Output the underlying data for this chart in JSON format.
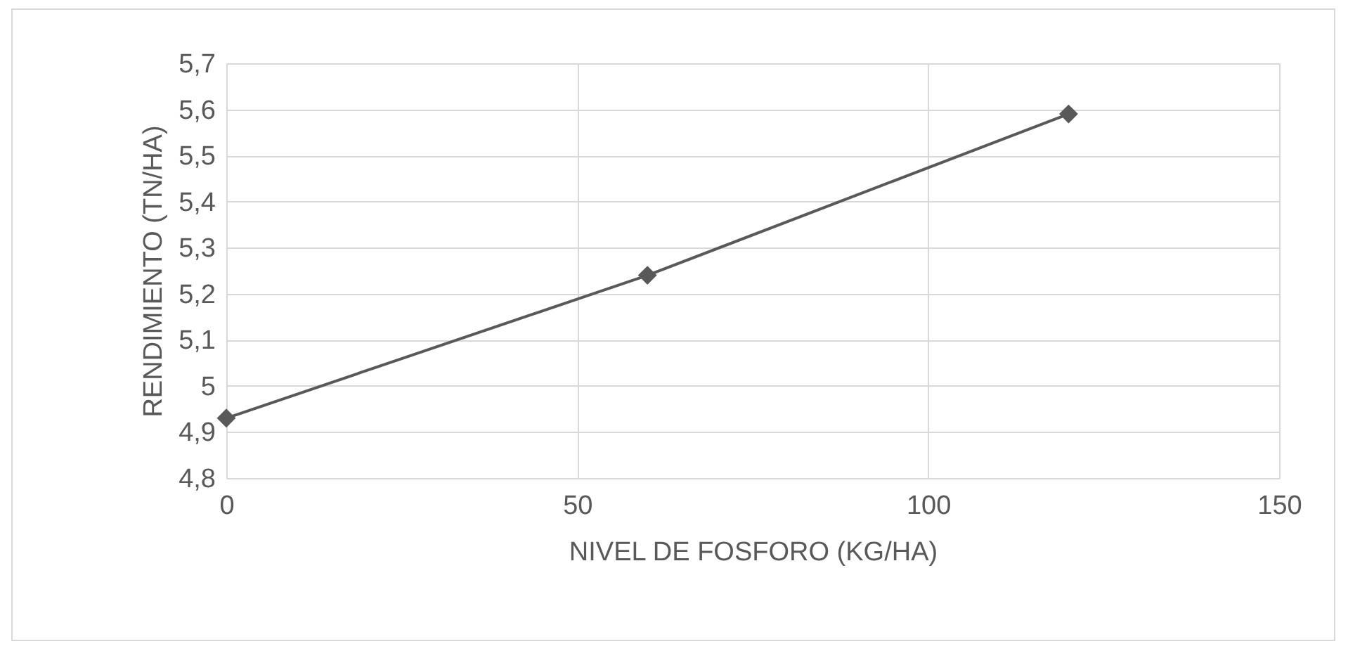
{
  "chart_data": {
    "type": "line",
    "xlabel": "NIVEL DE FOSFORO (KG/HA)",
    "ylabel": "RENDIMIENTO (TN/HA)",
    "x": [
      0,
      60,
      120
    ],
    "series": [
      {
        "color": "#595959",
        "values": [
          4.93,
          5.24,
          5.59
        ]
      }
    ],
    "xlim": [
      0,
      150
    ],
    "xticks": [
      0,
      50,
      100,
      150
    ],
    "ylim": [
      4.8,
      5.7
    ],
    "yticks": [
      {
        "value": 4.8,
        "label": "4,8"
      },
      {
        "value": 4.9,
        "label": "4,9"
      },
      5,
      {
        "value": 5.1,
        "label": "5,1"
      },
      {
        "value": 5.2,
        "label": "5,2"
      },
      {
        "value": 5.3,
        "label": "5,3"
      },
      {
        "value": 5.4,
        "label": "5,4"
      },
      {
        "value": 5.5,
        "label": "5,5"
      },
      {
        "value": 5.6,
        "label": "5,6"
      },
      {
        "value": 5.7,
        "label": "5,7"
      }
    ],
    "grid": true,
    "marker": "diamond",
    "line_style": "solid"
  }
}
